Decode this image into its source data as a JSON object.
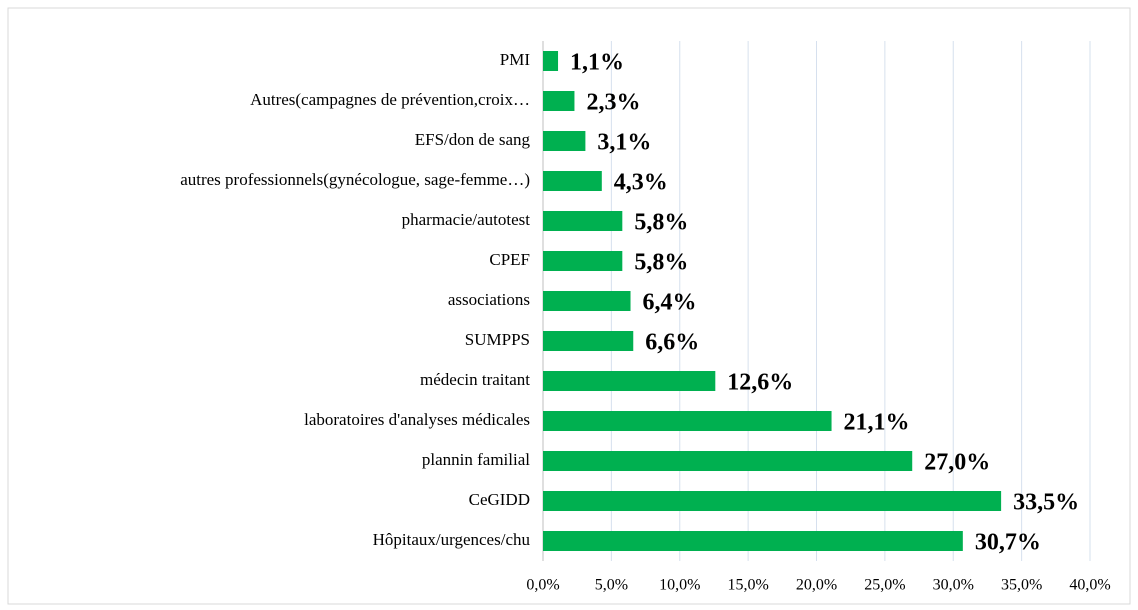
{
  "chart_data": {
    "type": "bar",
    "orientation": "horizontal",
    "categories": [
      "PMI",
      "Autres(campagnes de prévention,croix…",
      "EFS/don de sang",
      "autres professionnels(gynécologue, sage-femme…)",
      "pharmacie/autotest",
      "CPEF",
      "associations",
      "SUMPPS",
      "médecin traitant",
      "laboratoires d'analyses médicales",
      "plannin familial",
      "CeGIDD",
      "Hôpitaux/urgences/chu"
    ],
    "values": [
      1.1,
      2.3,
      3.1,
      4.3,
      5.8,
      5.8,
      6.4,
      6.6,
      12.6,
      21.1,
      27.0,
      33.5,
      30.7
    ],
    "value_labels": [
      "1,1%",
      "2,3%",
      "3,1%",
      "4,3%",
      "5,8%",
      "5,8%",
      "6,4%",
      "6,6%",
      "12,6%",
      "21,1%",
      "27,0%",
      "33,5%",
      "30,7%"
    ],
    "color": "#00b050",
    "xlim": [
      0,
      40
    ],
    "xticks": [
      {
        "value": 0,
        "label": "0,0%"
      },
      {
        "value": 5,
        "label": "5,0%"
      },
      {
        "value": 10,
        "label": "10,0%"
      },
      {
        "value": 15,
        "label": "15,0%"
      },
      {
        "value": 20,
        "label": "20,0%"
      },
      {
        "value": 25,
        "label": "25,0%"
      },
      {
        "value": 30,
        "label": "30,0%"
      },
      {
        "value": 35,
        "label": "35,0%"
      },
      {
        "value": 40,
        "label": "40,0%"
      }
    ],
    "grid": true
  }
}
